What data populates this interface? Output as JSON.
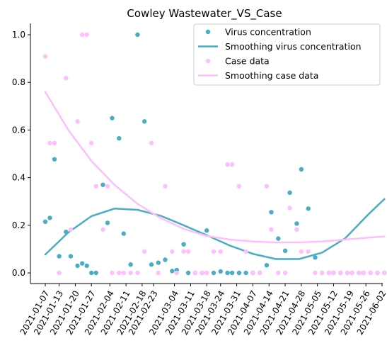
{
  "chart_data": {
    "type": "scatter",
    "title": "Cowley Wastewater_VS_Case",
    "xlabel": "",
    "ylabel": "",
    "x_ticks": [
      "2021-01-07",
      "2021-01-13",
      "2021-01-20",
      "2021-01-27",
      "2021-02-04",
      "2021-02-11",
      "2021-02-18",
      "2021-02-23",
      "2021-03-04",
      "2021-03-11",
      "2021-03-18",
      "2021-03-24",
      "2021-03-31",
      "2021-04-07",
      "2021-04-14",
      "2021-04-21",
      "2021-04-28",
      "2021-05-05",
      "2021-05-12",
      "2021-05-19",
      "2021-05-26",
      "2021-06-02"
    ],
    "y_ticks": [
      "0.0",
      "0.2",
      "0.4",
      "0.6",
      "0.8",
      "1.0"
    ],
    "ylim": [
      -0.04,
      1.05
    ],
    "grid": false,
    "legend_position": "top-right",
    "colors": {
      "virus": "#4aacc5",
      "case": "#ffbfff"
    },
    "series": [
      {
        "name": "Virus concentration",
        "kind": "points",
        "color": "#4aacc5",
        "x": [
          "2021-01-07",
          "2021-01-09",
          "2021-01-11",
          "2021-01-13",
          "2021-01-16",
          "2021-01-18",
          "2021-01-21",
          "2021-01-23",
          "2021-01-25",
          "2021-01-27",
          "2021-01-29",
          "2021-02-01",
          "2021-02-03",
          "2021-02-05",
          "2021-02-08",
          "2021-02-10",
          "2021-02-13",
          "2021-02-16",
          "2021-02-19",
          "2021-02-22",
          "2021-02-25",
          "2021-02-28",
          "2021-03-03",
          "2021-03-05",
          "2021-03-08",
          "2021-03-10",
          "2021-03-13",
          "2021-03-16",
          "2021-03-18",
          "2021-03-21",
          "2021-03-24",
          "2021-03-27",
          "2021-03-29",
          "2021-04-01",
          "2021-04-04",
          "2021-04-07",
          "2021-04-10",
          "2021-04-13",
          "2021-04-15",
          "2021-04-18",
          "2021-04-21",
          "2021-04-23",
          "2021-04-26",
          "2021-04-28",
          "2021-05-01",
          "2021-05-04",
          "2021-05-07",
          "2021-05-10",
          "2021-05-12",
          "2021-05-15",
          "2021-05-18",
          "2021-05-20",
          "2021-05-23",
          "2021-05-25",
          "2021-05-28",
          "2021-05-31",
          "2021-06-03"
        ],
        "y": [
          0.215,
          0.231,
          0.477,
          0.07,
          0.172,
          0.07,
          0.03,
          0.04,
          0.03,
          0.0,
          0.0,
          0.37,
          0.21,
          0.65,
          0.565,
          0.165,
          0.035,
          1.0,
          0.636,
          0.035,
          0.043,
          0.055,
          0.008,
          0.012,
          0.12,
          0.0,
          0.0,
          0.0,
          0.178,
          0.0,
          0.006,
          0.0,
          0.0,
          0.0,
          0.0,
          0.0,
          0.0,
          0.032,
          0.255,
          0.144,
          0.093,
          0.337,
          0.207,
          0.435,
          0.27,
          0.065,
          0.0,
          0.0,
          0.0,
          0.0,
          0.0,
          0.0,
          0.0,
          0.0,
          0.0,
          0.0,
          0.0
        ]
      },
      {
        "name": "Smoothing virus concentration",
        "kind": "line",
        "color": "#4aacc5",
        "x": [
          "2021-01-07",
          "2021-01-17",
          "2021-01-27",
          "2021-02-06",
          "2021-02-16",
          "2021-02-26",
          "2021-03-08",
          "2021-03-18",
          "2021-03-28",
          "2021-04-07",
          "2021-04-17",
          "2021-04-27",
          "2021-05-07",
          "2021-05-17",
          "2021-05-27",
          "2021-06-03"
        ],
        "y": [
          0.077,
          0.17,
          0.238,
          0.27,
          0.265,
          0.24,
          0.2,
          0.158,
          0.115,
          0.08,
          0.058,
          0.058,
          0.085,
          0.145,
          0.245,
          0.31
        ]
      },
      {
        "name": "Case data",
        "kind": "points",
        "color": "#ffbfff",
        "x": [
          "2021-01-07",
          "2021-01-09",
          "2021-01-11",
          "2021-01-13",
          "2021-01-16",
          "2021-01-18",
          "2021-01-21",
          "2021-01-23",
          "2021-01-25",
          "2021-01-27",
          "2021-01-29",
          "2021-02-01",
          "2021-02-03",
          "2021-02-05",
          "2021-02-08",
          "2021-02-10",
          "2021-02-13",
          "2021-02-16",
          "2021-02-19",
          "2021-02-22",
          "2021-02-25",
          "2021-02-28",
          "2021-03-03",
          "2021-03-05",
          "2021-03-08",
          "2021-03-10",
          "2021-03-13",
          "2021-03-16",
          "2021-03-18",
          "2021-03-21",
          "2021-03-24",
          "2021-03-27",
          "2021-03-29",
          "2021-04-01",
          "2021-04-04",
          "2021-04-07",
          "2021-04-10",
          "2021-04-13",
          "2021-04-15",
          "2021-04-18",
          "2021-04-21",
          "2021-04-23",
          "2021-04-26",
          "2021-04-28",
          "2021-05-01",
          "2021-05-04",
          "2021-05-07",
          "2021-05-10",
          "2021-05-12",
          "2021-05-15",
          "2021-05-18",
          "2021-05-20",
          "2021-05-23",
          "2021-05-25",
          "2021-05-28",
          "2021-05-31",
          "2021-06-03"
        ],
        "y": [
          0.909,
          0.545,
          0.545,
          0.0,
          0.818,
          0.182,
          0.636,
          1.0,
          1.0,
          0.545,
          0.364,
          0.182,
          0.364,
          0.0,
          0.0,
          0.0,
          0.0,
          0.0,
          0.09,
          0.545,
          0.0,
          0.364,
          0.09,
          0.0,
          0.09,
          0.09,
          0.0,
          0.0,
          0.0,
          0.09,
          0.09,
          0.455,
          0.455,
          0.364,
          0.09,
          0.0,
          0.0,
          0.364,
          0.182,
          0.0,
          0.0,
          0.273,
          0.182,
          0.09,
          0.09,
          0.0,
          0.0,
          0.0,
          0.0,
          0.0,
          0.0,
          0.0,
          0.0,
          0.0,
          0.0,
          0.0,
          0.0
        ]
      },
      {
        "name": "Smoothing case data",
        "kind": "line",
        "color": "#ffbfff",
        "x": [
          "2021-01-07",
          "2021-01-17",
          "2021-01-27",
          "2021-02-06",
          "2021-02-16",
          "2021-02-26",
          "2021-03-08",
          "2021-03-18",
          "2021-03-28",
          "2021-04-07",
          "2021-04-17",
          "2021-04-27",
          "2021-05-07",
          "2021-05-17",
          "2021-05-27",
          "2021-06-03"
        ],
        "y": [
          0.76,
          0.6,
          0.47,
          0.37,
          0.29,
          0.23,
          0.185,
          0.155,
          0.14,
          0.132,
          0.128,
          0.128,
          0.132,
          0.14,
          0.148,
          0.153
        ]
      }
    ]
  }
}
